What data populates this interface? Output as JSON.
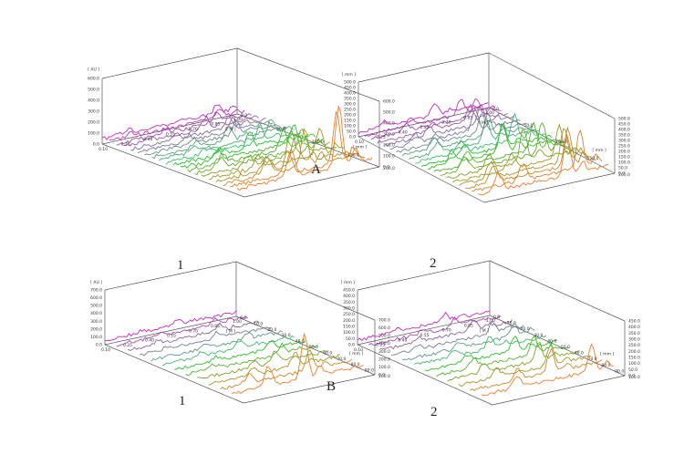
{
  "figure_labels": {
    "row_a": "A",
    "row_b": "B",
    "top_left_panel": "1",
    "top_right_panel": "2",
    "bottom_left_panel": "1",
    "bottom_right_panel": "2"
  },
  "chart_data": [
    {
      "type": "area",
      "panel": "A-1",
      "z_axis_unit": "[ AU ]",
      "z_ticks": [
        "0.0",
        "100.0",
        "200.0",
        "300.0",
        "400.0",
        "500.0",
        "600.0"
      ],
      "x_axis_unit": "[ M ]",
      "x_ticks": [
        "0.10",
        "0.25",
        "0.40",
        "0.55",
        "0.70",
        "0.85",
        "1.00"
      ],
      "y_axis_unit": "[ mm ]",
      "y_ticks": [
        "0.0",
        "50.0",
        "100.0",
        "150.0",
        "200.0"
      ],
      "ylim": [
        0,
        600
      ],
      "series_count": 20,
      "peak_values": [
        80,
        85,
        90,
        95,
        100,
        110,
        120,
        130,
        140,
        150,
        160,
        170,
        180,
        200,
        220,
        240,
        280,
        350,
        460,
        560
      ]
    },
    {
      "type": "area",
      "panel": "A-2",
      "z_axis_unit": "[ mm ]",
      "z_ticks": [
        "0.0",
        "50.0",
        "100.0",
        "150.0",
        "200.0",
        "250.0",
        "300.0",
        "350.0",
        "400.0",
        "450.0",
        "500.0"
      ],
      "x_axis_unit": "[ M ]",
      "x_ticks": [
        "0.10",
        "0.25",
        "0.40",
        "0.55",
        "0.70",
        "0.85",
        "1.00"
      ],
      "y_axis_unit": "[ mm ]",
      "y_ticks": [
        "0.0",
        "50.0",
        "100.0",
        "150.0",
        "200.0"
      ],
      "ylim": [
        0,
        500
      ],
      "series_count": 20,
      "peak_values": [
        120,
        140,
        160,
        150,
        170,
        190,
        180,
        210,
        200,
        230,
        220,
        260,
        250,
        280,
        300,
        290,
        320,
        340,
        330,
        360
      ]
    },
    {
      "type": "area",
      "panel": "B-1",
      "z_axis_unit": "[ AU ]",
      "z_ticks": [
        "0.0",
        "100.0",
        "200.0",
        "300.0",
        "400.0",
        "500.0",
        "600.0",
        "700.0"
      ],
      "x_axis_unit": "[ M ]",
      "x_ticks": [
        "0.10",
        "0.25",
        "0.40",
        "0.55",
        "0.70",
        "0.85",
        "1.00"
      ],
      "y_axis_unit": "[ mm ]",
      "y_ticks": [
        "0.0",
        "10.0",
        "20.0",
        "30.0",
        "40.0",
        "50.0",
        "60.0",
        "70.0",
        "80.0",
        "90.0",
        "100.0"
      ],
      "ylim": [
        0,
        700
      ],
      "series_count": 12,
      "peak_values": [
        60,
        70,
        75,
        80,
        90,
        100,
        110,
        120,
        140,
        170,
        260,
        560
      ]
    },
    {
      "type": "area",
      "panel": "B-2",
      "z_axis_unit": "[ mm ]",
      "z_ticks": [
        "0.0",
        "50.0",
        "100.0",
        "150.0",
        "200.0",
        "250.0",
        "300.0",
        "350.0",
        "400.0",
        "450.0"
      ],
      "x_axis_unit": "[ M ]",
      "x_ticks": [
        "0.10",
        "0.25",
        "0.40",
        "0.55",
        "0.70",
        "0.85",
        "1.00"
      ],
      "y_axis_unit": "[ mm ]",
      "y_ticks": [
        "0.0",
        "10.0",
        "20.0",
        "30.0",
        "40.0",
        "50.0",
        "60.0",
        "70.0",
        "80.0",
        "90.0",
        "100.0"
      ],
      "ylim": [
        0,
        450
      ],
      "series_count": 12,
      "peak_values": [
        60,
        70,
        80,
        90,
        100,
        110,
        120,
        140,
        150,
        170,
        190,
        220
      ]
    }
  ]
}
